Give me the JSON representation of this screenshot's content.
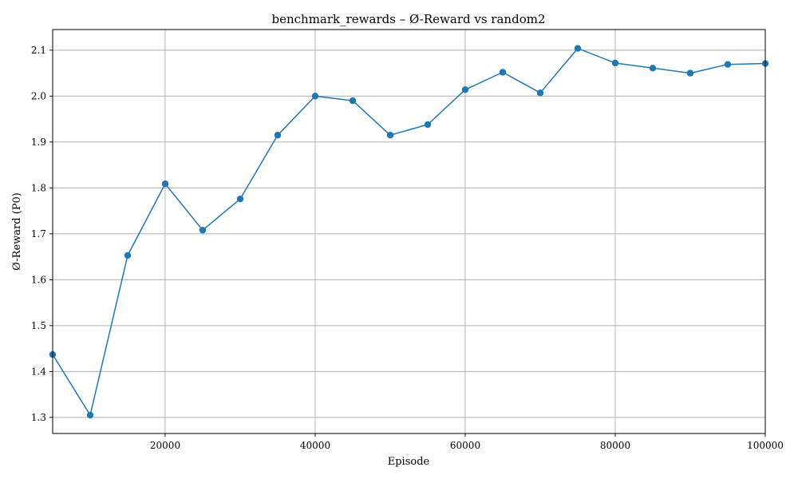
{
  "chart_data": {
    "type": "line",
    "title": "benchmark_rewards – Ø-Reward vs random2",
    "xlabel": "Episode",
    "ylabel": "Ø-Reward (P0)",
    "xlim": [
      5000,
      100000
    ],
    "ylim": [
      1.265,
      2.145
    ],
    "xticks": [
      20000,
      40000,
      60000,
      80000,
      100000
    ],
    "xtick_labels": [
      "20000",
      "40000",
      "60000",
      "80000",
      "100000"
    ],
    "yticks": [
      1.3,
      1.4,
      1.5,
      1.6,
      1.7,
      1.8,
      1.9,
      2.0,
      2.1
    ],
    "ytick_labels": [
      "1.3",
      "1.4",
      "1.5",
      "1.6",
      "1.7",
      "1.8",
      "1.9",
      "2.0",
      "2.1"
    ],
    "grid": true,
    "color": "#1f77b4",
    "series": [
      {
        "x": [
          5000,
          10000,
          15000,
          20000,
          25000,
          30000,
          35000,
          40000,
          45000,
          50000,
          55000,
          60000,
          65000,
          70000,
          75000,
          80000,
          85000,
          90000,
          95000,
          100000
        ],
        "y": [
          1.437,
          1.305,
          1.653,
          1.809,
          1.708,
          1.776,
          1.915,
          2.0,
          1.99,
          1.915,
          1.938,
          2.014,
          2.052,
          2.007,
          2.104,
          2.072,
          2.061,
          2.05,
          2.069,
          2.071
        ]
      }
    ]
  }
}
